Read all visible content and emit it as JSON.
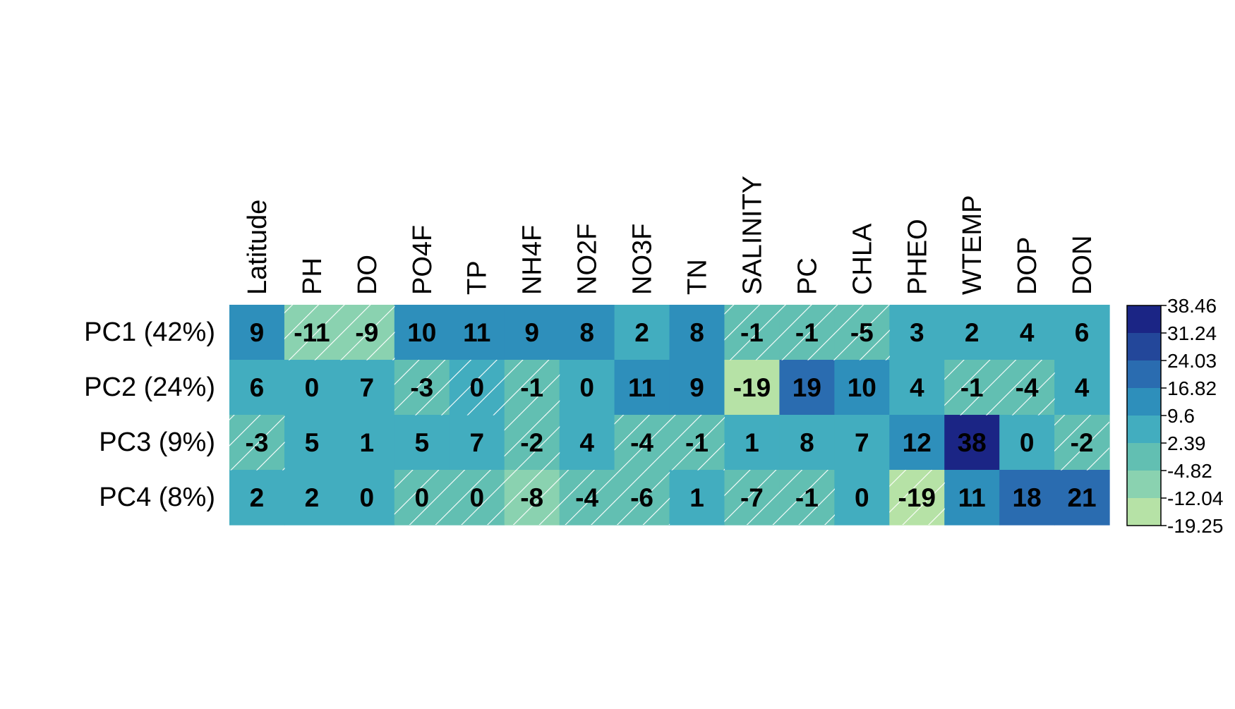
{
  "chart_data": {
    "type": "heatmap",
    "columns": [
      "Latitude",
      "PH",
      "DO",
      "PO4F",
      "TP",
      "NH4F",
      "NO2F",
      "NO3F",
      "TN",
      "SALINITY",
      "PC",
      "CHLA",
      "PHEO",
      "WTEMP",
      "DOP",
      "DON"
    ],
    "rows": [
      "PC1 (42%)",
      "PC2 (24%)",
      "PC3 (9%)",
      "PC4 (8%)"
    ],
    "values": [
      [
        9,
        -11,
        -9,
        10,
        11,
        9,
        8,
        2,
        8,
        -1,
        -1,
        -5,
        3,
        2,
        4,
        6
      ],
      [
        6,
        0,
        7,
        -3,
        0,
        -1,
        0,
        11,
        9,
        -19,
        19,
        10,
        4,
        -1,
        -4,
        4
      ],
      [
        -3,
        5,
        1,
        5,
        7,
        -2,
        4,
        -4,
        -1,
        1,
        8,
        7,
        12,
        38,
        0,
        -2
      ],
      [
        2,
        2,
        0,
        0,
        0,
        -8,
        -4,
        -6,
        1,
        -7,
        -1,
        0,
        -19,
        11,
        18,
        21
      ]
    ],
    "hatched": [
      [
        false,
        true,
        true,
        false,
        false,
        false,
        false,
        false,
        false,
        true,
        true,
        true,
        false,
        false,
        false,
        false
      ],
      [
        false,
        false,
        false,
        true,
        true,
        true,
        false,
        false,
        false,
        false,
        false,
        false,
        false,
        true,
        true,
        false
      ],
      [
        true,
        false,
        false,
        false,
        false,
        true,
        false,
        true,
        true,
        false,
        false,
        false,
        false,
        false,
        false,
        true
      ],
      [
        false,
        false,
        false,
        true,
        true,
        true,
        true,
        true,
        false,
        true,
        true,
        false,
        true,
        false,
        false,
        false
      ]
    ],
    "cell_colors": [
      [
        "#2e8fbb",
        "#8ad2b0",
        "#8ad2b0",
        "#2e8fbb",
        "#2e8fbb",
        "#2e8fbb",
        "#2e8fbb",
        "#42adbf",
        "#2e8fbb",
        "#62bfb2",
        "#62bfb2",
        "#62bfb2",
        "#42adbf",
        "#42adbf",
        "#42adbf",
        "#42adbf"
      ],
      [
        "#42adbf",
        "#42adbf",
        "#42adbf",
        "#62bfb2",
        "#42adbf",
        "#62bfb2",
        "#42adbf",
        "#2e8fbb",
        "#2e8fbb",
        "#b6e2a6",
        "#2a6cb0",
        "#2e8fbb",
        "#42adbf",
        "#62bfb2",
        "#62bfb2",
        "#42adbf"
      ],
      [
        "#62bfb2",
        "#42adbf",
        "#42adbf",
        "#42adbf",
        "#42adbf",
        "#62bfb2",
        "#42adbf",
        "#62bfb2",
        "#62bfb2",
        "#42adbf",
        "#42adbf",
        "#42adbf",
        "#2e8fbb",
        "#1b2585",
        "#42adbf",
        "#62bfb2"
      ],
      [
        "#42adbf",
        "#42adbf",
        "#42adbf",
        "#62bfb2",
        "#62bfb2",
        "#8ad2b0",
        "#62bfb2",
        "#62bfb2",
        "#42adbf",
        "#62bfb2",
        "#62bfb2",
        "#42adbf",
        "#b6e2a6",
        "#2e8fbb",
        "#2a6cb0",
        "#2a6cb0"
      ]
    ],
    "legend": {
      "ticks": [
        "38.46",
        "31.24",
        "24.03",
        "16.82",
        "9.6",
        "2.39",
        "-4.82",
        "-12.04",
        "-19.25"
      ],
      "colors": [
        "#1b2585",
        "#23479a",
        "#2a6cb0",
        "#2e8fbb",
        "#42adbf",
        "#62bfb2",
        "#8ad2b0",
        "#b6e2a6"
      ]
    }
  }
}
